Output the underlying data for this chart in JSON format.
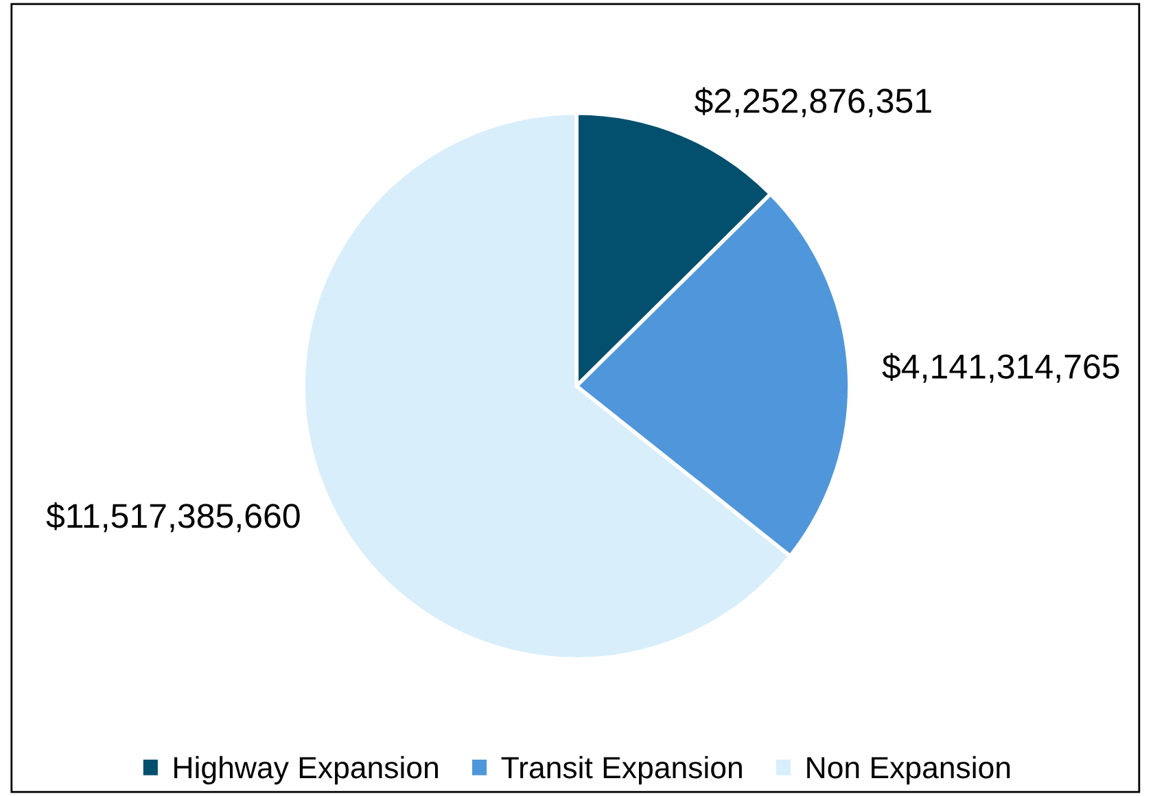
{
  "chart_data": {
    "type": "pie",
    "categories": [
      "Highway Expansion",
      "Transit Expansion",
      "Non Expansion"
    ],
    "values": [
      2252876351,
      4141314765,
      11517385660
    ],
    "colors": [
      "#03506e",
      "#4f97da",
      "#d8eefb"
    ],
    "value_labels": [
      "$2,252,876,351",
      "$4,141,314,765",
      "$11,517,385,660"
    ],
    "legend": "bottom"
  }
}
